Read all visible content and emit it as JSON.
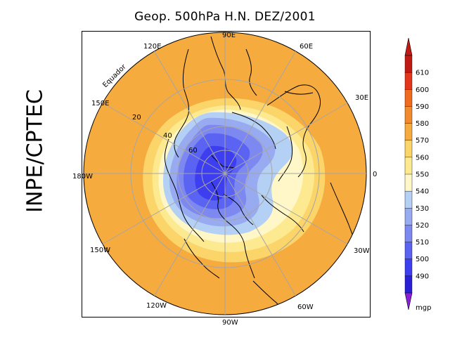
{
  "title": "Geop. 500hPa H.N. DEZ/2001",
  "side_label": "INPE/CPTEC",
  "map": {
    "longitude_labels": [
      "90E",
      "60E",
      "30E",
      "0",
      "30W",
      "60W",
      "90W",
      "120W",
      "150W",
      "180W",
      "150E",
      "120E"
    ],
    "latitude_labels": [
      "20",
      "40",
      "60"
    ],
    "equator_label": "Equador"
  },
  "colorbar": {
    "unit": "mgp",
    "levels": [
      "490",
      "500",
      "510",
      "520",
      "530",
      "540",
      "550",
      "560",
      "570",
      "580",
      "590",
      "600",
      "610"
    ],
    "colors": [
      "#2a1fd6",
      "#3d3ef0",
      "#5a63f2",
      "#7d89f0",
      "#98aaf0",
      "#b4d0f4",
      "#fff7c8",
      "#fde98f",
      "#fbd46a",
      "#f6ab3e",
      "#f18a2c",
      "#f06a1f",
      "#e4361a",
      "#c01a14"
    ],
    "arrow_low_color": "#8b1fd6",
    "arrow_high_color": "#c01a14"
  },
  "colors": {
    "ocean_warm": "#f6ab3e",
    "land_line": "#000000",
    "grid": "#a6a6a6"
  }
}
